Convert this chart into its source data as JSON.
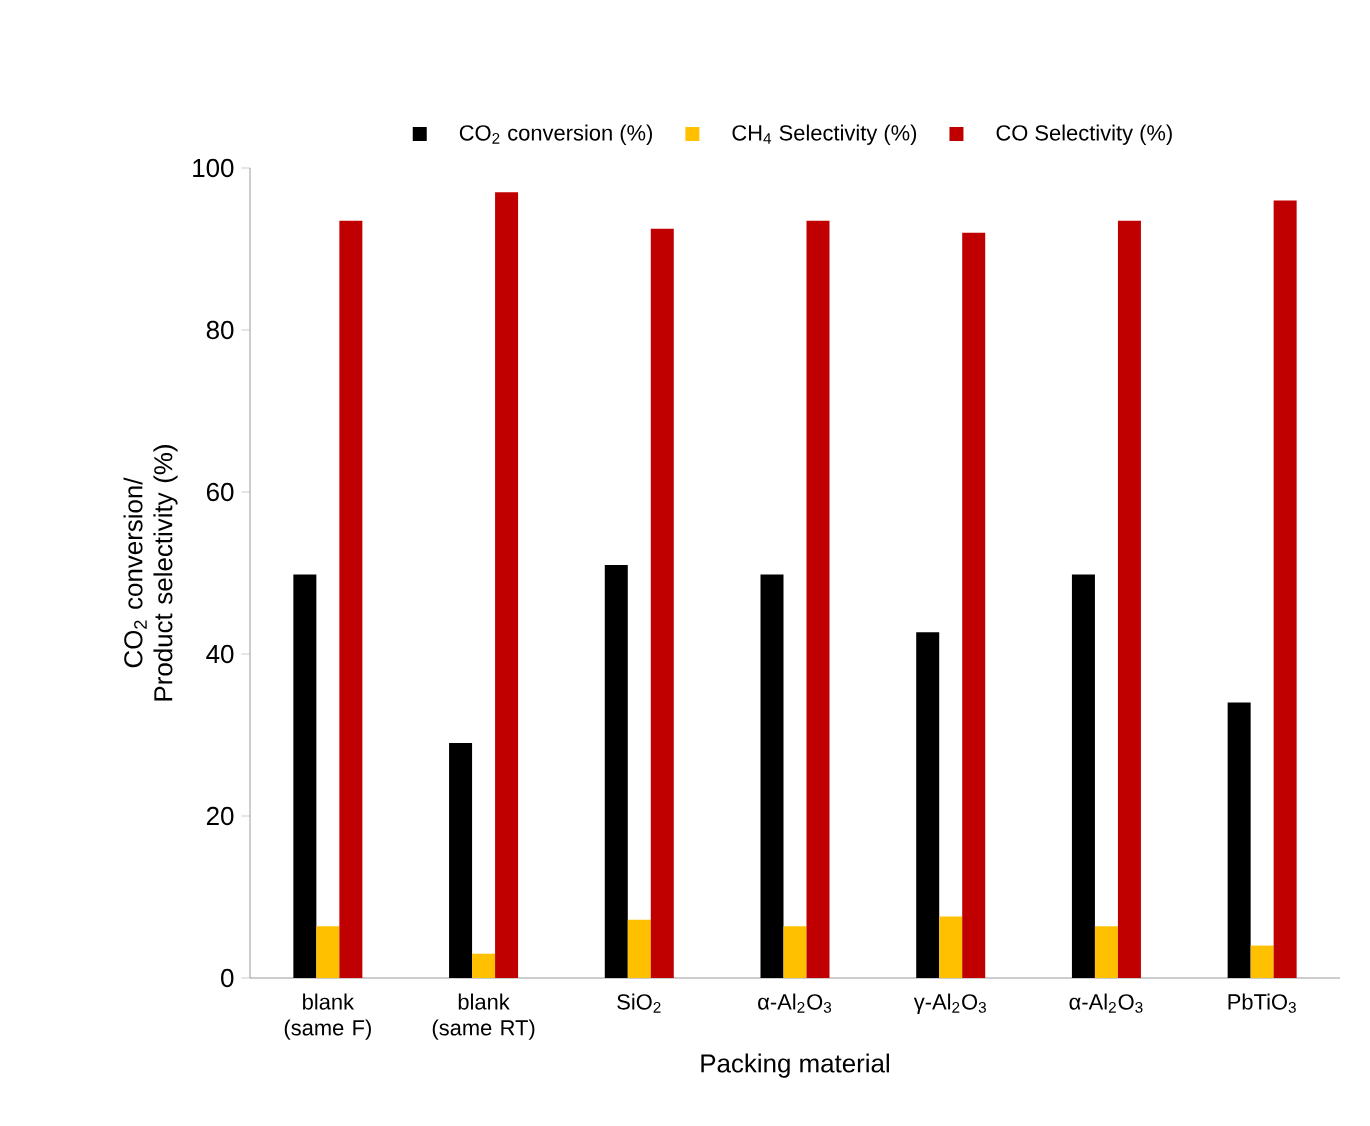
{
  "chart_data": {
    "type": "bar",
    "xlabel": "Packing material",
    "ylabel": "CO$_{2}$ conversion/ Product selectivity (%)",
    "categories": [
      "blank (same F)",
      "blank (same RT)",
      "SiO$_{2}$",
      "α-Al$_{2}$O$_{3}$",
      "γ-Al$_{2}$O$_{3}$",
      "α-Al$_{2}$O$_{3}$",
      "PbTiO$_{3}$"
    ],
    "series": [
      {
        "name": "CO$_{2}$ conversion (%)",
        "color": "#000000",
        "values": [
          49.8,
          29.0,
          51.0,
          49.8,
          42.7,
          49.8,
          34.0
        ]
      },
      {
        "name": "CH$_{4}$ Selectivity (%)",
        "color": "#ffc000",
        "values": [
          6.4,
          3.0,
          7.2,
          6.4,
          7.6,
          6.4,
          4.0
        ]
      },
      {
        "name": "CO Selectivity (%)",
        "color": "#c00000",
        "values": [
          93.5,
          97.0,
          92.5,
          93.5,
          92.0,
          93.5,
          96.0
        ]
      }
    ],
    "ylim": [
      0,
      100
    ],
    "yticks": [
      0,
      20,
      40,
      60,
      80,
      100
    ],
    "legend": "top",
    "grid": false
  }
}
